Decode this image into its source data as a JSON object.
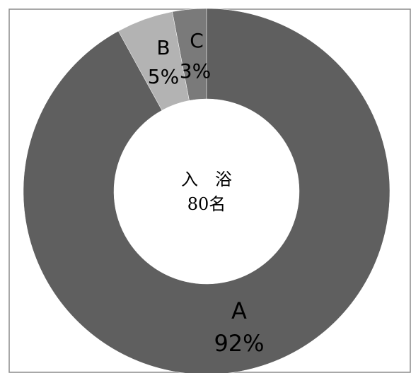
{
  "chart_data": {
    "type": "pie",
    "variant": "donut",
    "categories": [
      "A",
      "B",
      "C"
    ],
    "values": [
      92,
      5,
      3
    ],
    "value_labels": [
      "92%",
      "5%",
      "3%"
    ],
    "colors": [
      "#5f5f5f",
      "#b3b3b3",
      "#7a7a7a"
    ],
    "center_label": {
      "line1": "入　浴",
      "line2": "80名"
    },
    "legend": "none"
  }
}
